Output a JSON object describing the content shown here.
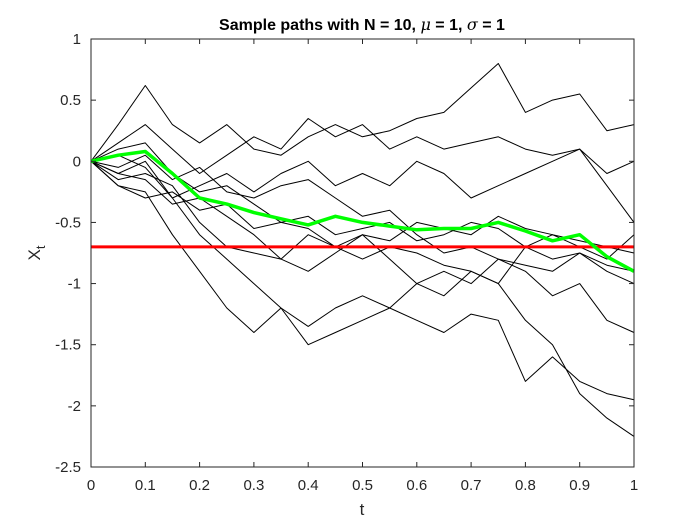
{
  "chart_data": {
    "type": "line",
    "title": {
      "prefix": "Sample paths with N = 10, ",
      "mu_symbol": "μ",
      "mu_text": " = 1, ",
      "sigma_symbol": "σ",
      "sigma_text": " = 1"
    },
    "xlabel": "t",
    "ylabel": "X",
    "ylabel_subscript": "t",
    "xlim": [
      0,
      1
    ],
    "ylim": [
      -2.5,
      1
    ],
    "xticks": [
      0,
      0.1,
      0.2,
      0.3,
      0.4,
      0.5,
      0.6,
      0.7,
      0.8,
      0.9,
      1
    ],
    "xtick_labels": [
      "0",
      "0.1",
      "0.2",
      "0.3",
      "0.4",
      "0.5",
      "0.6",
      "0.7",
      "0.8",
      "0.9",
      "1"
    ],
    "yticks": [
      1,
      0.5,
      0,
      -0.5,
      -1,
      -1.5,
      -2,
      -2.5
    ],
    "ytick_labels": [
      "1",
      "0.5",
      "0",
      "-0.5",
      "-1",
      "-1.5",
      "-2",
      "-2.5"
    ],
    "grid": false,
    "sample_paths": {
      "color": "#000000",
      "x": [
        0,
        0.05,
        0.1,
        0.15,
        0.2,
        0.25,
        0.3,
        0.35,
        0.4,
        0.45,
        0.5,
        0.55,
        0.6,
        0.65,
        0.7,
        0.75,
        0.8,
        0.85,
        0.9,
        0.95,
        1
      ],
      "paths": [
        [
          0,
          0.3,
          0.62,
          0.3,
          0.15,
          0.3,
          0.1,
          0.05,
          0.2,
          0.3,
          0.2,
          0.25,
          0.35,
          0.4,
          0.6,
          0.8,
          0.4,
          0.5,
          0.55,
          0.25,
          0.3
        ],
        [
          0,
          0.15,
          0.3,
          0.1,
          -0.1,
          0.05,
          0.2,
          0.1,
          0.35,
          0.2,
          0.3,
          0.1,
          0.2,
          0.1,
          0.15,
          0.2,
          0.1,
          0.05,
          0.1,
          -0.2,
          -0.5
        ],
        [
          0,
          -0.1,
          0.0,
          -0.3,
          -0.2,
          -0.1,
          -0.25,
          -0.1,
          0.0,
          -0.2,
          -0.1,
          -0.2,
          0.0,
          -0.1,
          -0.3,
          -0.2,
          -0.1,
          0.0,
          0.1,
          -0.1,
          0.0
        ],
        [
          0,
          -0.2,
          -0.3,
          -0.25,
          -0.4,
          -0.35,
          -0.55,
          -0.5,
          -0.45,
          -0.6,
          -0.55,
          -0.5,
          -0.65,
          -0.6,
          -0.5,
          -0.55,
          -0.7,
          -0.6,
          -0.65,
          -0.7,
          -0.75
        ],
        [
          0,
          -0.15,
          -0.1,
          -0.2,
          -0.5,
          -0.7,
          -0.75,
          -0.8,
          -0.6,
          -0.7,
          -0.8,
          -0.7,
          -0.75,
          -0.85,
          -0.9,
          -1.0,
          -0.7,
          -0.8,
          -0.75,
          -0.85,
          -0.9
        ],
        [
          0,
          -0.2,
          -0.25,
          -0.6,
          -0.9,
          -1.2,
          -1.4,
          -1.2,
          -1.35,
          -1.2,
          -1.1,
          -1.2,
          -1.0,
          -0.9,
          -1.0,
          -0.8,
          -0.9,
          -1.1,
          -1.0,
          -1.3,
          -1.4
        ],
        [
          0,
          0.05,
          -0.05,
          -0.3,
          -0.6,
          -0.8,
          -1.0,
          -1.2,
          -1.5,
          -1.4,
          -1.3,
          -1.2,
          -1.3,
          -1.4,
          -1.25,
          -1.3,
          -1.8,
          -1.6,
          -1.8,
          -1.9,
          -1.95
        ],
        [
          0,
          -0.1,
          -0.15,
          -0.35,
          -0.3,
          -0.45,
          -0.6,
          -0.8,
          -0.9,
          -0.75,
          -0.6,
          -0.8,
          -1.0,
          -1.1,
          -0.9,
          -1.0,
          -1.3,
          -1.5,
          -1.9,
          -2.1,
          -2.25
        ],
        [
          0,
          0.1,
          0.15,
          -0.1,
          -0.25,
          -0.2,
          -0.35,
          -0.5,
          -0.55,
          -0.7,
          -0.6,
          -0.65,
          -0.5,
          -0.55,
          -0.6,
          -0.45,
          -0.55,
          -0.6,
          -0.7,
          -0.8,
          -0.6
        ],
        [
          0,
          -0.05,
          0.05,
          -0.15,
          -0.05,
          -0.25,
          -0.3,
          -0.2,
          -0.15,
          -0.3,
          -0.45,
          -0.4,
          -0.6,
          -0.75,
          -0.7,
          -0.8,
          -0.85,
          -0.9,
          -0.75,
          -0.9,
          -1.0
        ]
      ]
    },
    "mean_path": {
      "color": "#00ff00",
      "x": [
        0,
        0.05,
        0.1,
        0.15,
        0.2,
        0.25,
        0.3,
        0.35,
        0.4,
        0.45,
        0.5,
        0.55,
        0.6,
        0.65,
        0.7,
        0.75,
        0.8,
        0.85,
        0.9,
        0.95,
        1
      ],
      "values": [
        0,
        0.05,
        0.08,
        -0.1,
        -0.3,
        -0.35,
        -0.42,
        -0.47,
        -0.52,
        -0.45,
        -0.5,
        -0.53,
        -0.56,
        -0.55,
        -0.55,
        -0.5,
        -0.57,
        -0.65,
        -0.6,
        -0.78,
        -0.9
      ]
    },
    "reference_line": {
      "color": "#ff0000",
      "y": -0.7
    }
  }
}
